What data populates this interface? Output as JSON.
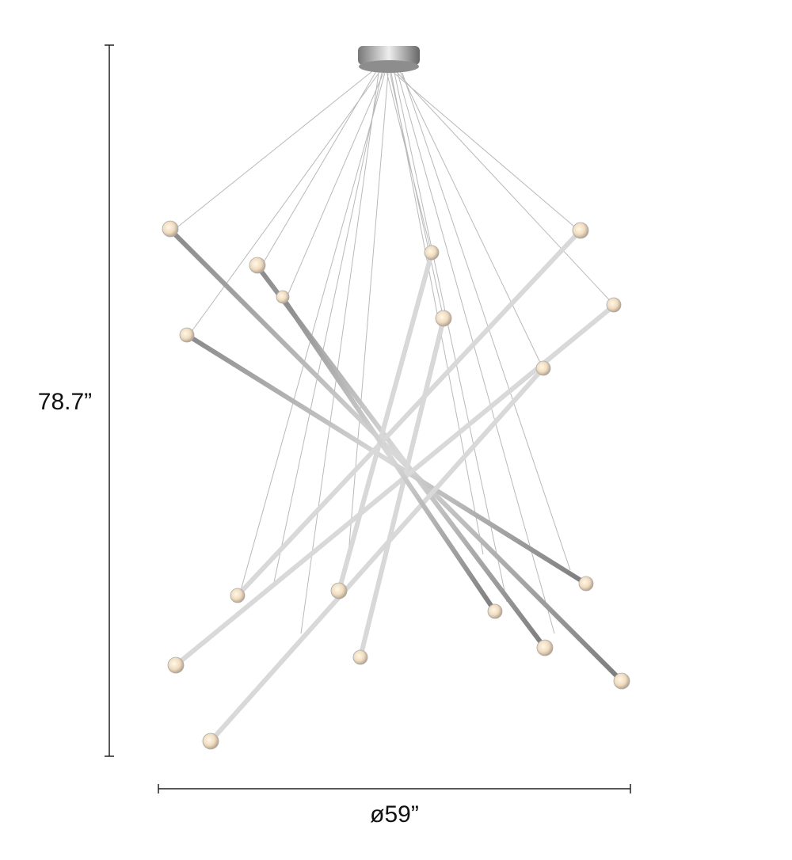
{
  "dimensions": {
    "height": "78.7”",
    "width": "ø59”"
  }
}
